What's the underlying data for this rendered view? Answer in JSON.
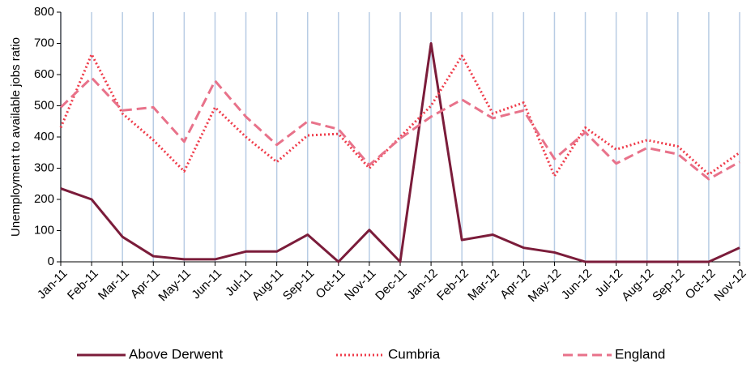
{
  "chart_data": {
    "type": "line",
    "y_label": "Unemployment to available jobs ratio",
    "categories": [
      "Jan-11",
      "Feb-11",
      "Mar-11",
      "Apr-11",
      "May-11",
      "Jun-11",
      "Jul-11",
      "Aug-11",
      "Sep-11",
      "Oct-11",
      "Nov-11",
      "Dec-11",
      "Jan-12",
      "Feb-12",
      "Mar-12",
      "Apr-12",
      "May-12",
      "Jun-12",
      "Jul-12",
      "Aug-12",
      "Sep-12",
      "Oct-12",
      "Nov-12"
    ],
    "series": [
      {
        "name": "Above Derwent",
        "color": "#7b1c3a",
        "line_style": "solid",
        "values": [
          235,
          200,
          80,
          18,
          8,
          8,
          33,
          33,
          87,
          0,
          102,
          0,
          700,
          70,
          87,
          45,
          30,
          0,
          0,
          0,
          0,
          0,
          45
        ]
      },
      {
        "name": "Cumbria",
        "color": "#ef3b4a",
        "line_style": "dotted",
        "values": [
          430,
          665,
          475,
          390,
          290,
          495,
          400,
          320,
          405,
          410,
          300,
          400,
          500,
          660,
          475,
          510,
          275,
          430,
          360,
          390,
          370,
          280,
          350
        ]
      },
      {
        "name": "England",
        "color": "#e8728a",
        "line_style": "dashed",
        "values": [
          495,
          590,
          485,
          495,
          385,
          580,
          465,
          375,
          450,
          425,
          310,
          395,
          465,
          520,
          460,
          485,
          330,
          415,
          315,
          365,
          345,
          265,
          320
        ]
      }
    ],
    "ylim": [
      0,
      800
    ],
    "yticks": [
      0,
      100,
      200,
      300,
      400,
      500,
      600,
      700,
      800
    ],
    "category_grid": true,
    "legend": "bottom"
  }
}
